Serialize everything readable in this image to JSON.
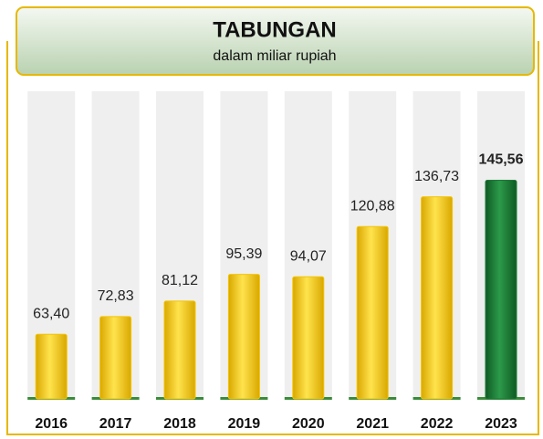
{
  "chart_data": {
    "type": "bar",
    "title": "TABUNGAN",
    "subtitle": "dalam miliar rupiah",
    "categories": [
      "2016",
      "2017",
      "2018",
      "2019",
      "2020",
      "2021",
      "2022",
      "2023"
    ],
    "values": [
      63.4,
      72.83,
      81.12,
      95.39,
      94.07,
      120.88,
      136.73,
      145.56
    ],
    "value_labels": [
      "63,40",
      "72,83",
      "81,12",
      "95,39",
      "94,07",
      "120,88",
      "136,73",
      "145,56"
    ],
    "colors": [
      "#f5c400",
      "#f5c400",
      "#f5c400",
      "#f5c400",
      "#f5c400",
      "#f5c400",
      "#f5c400",
      "#1b7a36"
    ],
    "ylim": [
      29,
      193
    ]
  }
}
